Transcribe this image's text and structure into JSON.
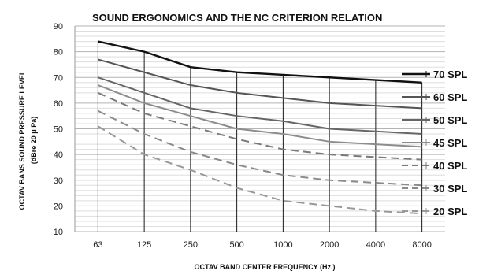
{
  "chart_data": {
    "type": "line",
    "title": "SOUND ERGONOMICS AND THE NC CRITERION RELATION",
    "xlabel": "OCTAV BAND CENTER FREQUENCY (Hz.)",
    "ylabel": [
      "OCTAV BANS SOUND PRESSURE LEVEL",
      "(dBre 20 μ Pa)"
    ],
    "categories": [
      "63",
      "125",
      "250",
      "500",
      "1000",
      "2000",
      "4000",
      "8000"
    ],
    "ylim": [
      10,
      90
    ],
    "yticks": [
      "10",
      "20",
      "30",
      "40",
      "50",
      "60",
      "70",
      "80",
      "90"
    ],
    "grid": true,
    "legend_position": "right",
    "series": [
      {
        "name": "70 SPL",
        "values": [
          84,
          80,
          74,
          72,
          71,
          70,
          69,
          68
        ],
        "color": "#111111",
        "dash": "solid"
      },
      {
        "name": "60 SPL",
        "values": [
          77,
          72,
          67,
          64,
          62,
          60,
          59,
          58
        ],
        "color": "#555555",
        "dash": "solid"
      },
      {
        "name": "50 SPL",
        "values": [
          70,
          64,
          58,
          55,
          53,
          50,
          49,
          48
        ],
        "color": "#666666",
        "dash": "solid"
      },
      {
        "name": "45 SPL",
        "values": [
          67,
          60,
          55,
          50,
          48,
          45,
          44,
          43
        ],
        "color": "#8c8c8c",
        "dash": "solid"
      },
      {
        "name": "40 SPL",
        "values": [
          64,
          56,
          51,
          46,
          42,
          40,
          39,
          38
        ],
        "color": "#7a7a7a",
        "dash": "dashed"
      },
      {
        "name": "30 SPL",
        "values": [
          57,
          48,
          41,
          36,
          32,
          30,
          29,
          28
        ],
        "color": "#8a8a8a",
        "dash": "dashed"
      },
      {
        "name": "20 SPL",
        "values": [
          51,
          40,
          34,
          27,
          22,
          20,
          18,
          17
        ],
        "color": "#999999",
        "dash": "dashed"
      }
    ]
  }
}
